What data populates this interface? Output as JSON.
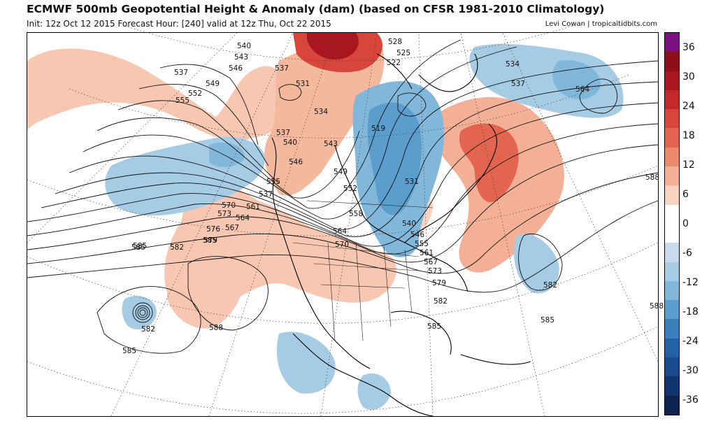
{
  "header": {
    "title": "ECMWF 500mb Geopotential Height & Anomaly (dam) (based on CFSR 1981-2010 Climatology)",
    "subtitle": "Init: 12z Oct 12 2015   Forecast Hour: [240]   valid at 12z Thu, Oct 22 2015",
    "credit": "Levi Cowan | tropicaltidbits.com"
  },
  "colorbar": {
    "ticks": [
      "36",
      "30",
      "24",
      "18",
      "12",
      "6",
      "0",
      "-6",
      "-12",
      "-18",
      "-24",
      "-30",
      "-36"
    ],
    "colors": [
      "#7b1080",
      "#8e0f1c",
      "#a8161f",
      "#c5282a",
      "#d8453b",
      "#e3654f",
      "#ec8a6d",
      "#f3b096",
      "#f9d3c1",
      "#ffffff",
      "#ffffff",
      "#c6dbee",
      "#a5cbe5",
      "#82b7dc",
      "#5b9dcd",
      "#3a80bc",
      "#2462a5",
      "#184a8c",
      "#10356e",
      "#0b2150"
    ]
  },
  "map": {
    "contour_labels": [
      {
        "text": "540",
        "kind": "height"
      },
      {
        "text": "543",
        "kind": "height"
      },
      {
        "text": "546",
        "kind": "height"
      },
      {
        "text": "537",
        "kind": "height"
      },
      {
        "text": "537",
        "kind": "height"
      },
      {
        "text": "549",
        "kind": "height"
      },
      {
        "text": "552",
        "kind": "height"
      },
      {
        "text": "555",
        "kind": "height"
      },
      {
        "text": "531",
        "kind": "height"
      },
      {
        "text": "534",
        "kind": "height"
      },
      {
        "text": "528",
        "kind": "height"
      },
      {
        "text": "525",
        "kind": "height"
      },
      {
        "text": "522",
        "kind": "height"
      },
      {
        "text": "534",
        "kind": "height"
      },
      {
        "text": "537",
        "kind": "height"
      },
      {
        "text": "564",
        "kind": "height"
      },
      {
        "text": "537",
        "kind": "height"
      },
      {
        "text": "540",
        "kind": "height"
      },
      {
        "text": "543",
        "kind": "height"
      },
      {
        "text": "519",
        "kind": "height"
      },
      {
        "text": "546",
        "kind": "height"
      },
      {
        "text": "549",
        "kind": "height"
      },
      {
        "text": "552",
        "kind": "height"
      },
      {
        "text": "555",
        "kind": "height"
      },
      {
        "text": "531",
        "kind": "height"
      },
      {
        "text": "537",
        "kind": "height"
      },
      {
        "text": "561",
        "kind": "height"
      },
      {
        "text": "564",
        "kind": "height"
      },
      {
        "text": "567",
        "kind": "height"
      },
      {
        "text": "570",
        "kind": "height"
      },
      {
        "text": "573",
        "kind": "height"
      },
      {
        "text": "576",
        "kind": "height"
      },
      {
        "text": "579",
        "kind": "height"
      },
      {
        "text": "582",
        "kind": "height"
      },
      {
        "text": "585",
        "kind": "height"
      },
      {
        "text": "585",
        "kind": "height"
      },
      {
        "text": "558",
        "kind": "height"
      },
      {
        "text": "564",
        "kind": "height"
      },
      {
        "text": "570",
        "kind": "height"
      },
      {
        "text": "540",
        "kind": "height"
      },
      {
        "text": "546",
        "kind": "height"
      },
      {
        "text": "555",
        "kind": "height"
      },
      {
        "text": "561",
        "kind": "height"
      },
      {
        "text": "567",
        "kind": "height"
      },
      {
        "text": "573",
        "kind": "height"
      },
      {
        "text": "579",
        "kind": "height"
      },
      {
        "text": "582",
        "kind": "height"
      },
      {
        "text": "585",
        "kind": "height"
      },
      {
        "text": "588",
        "kind": "height"
      },
      {
        "text": "582",
        "kind": "height"
      },
      {
        "text": "585",
        "kind": "height"
      },
      {
        "text": "582",
        "kind": "height"
      },
      {
        "text": "588",
        "kind": "height"
      },
      {
        "text": "585",
        "kind": "height"
      },
      {
        "text": "588",
        "kind": "height"
      },
      {
        "text": "585",
        "kind": "height"
      }
    ]
  }
}
